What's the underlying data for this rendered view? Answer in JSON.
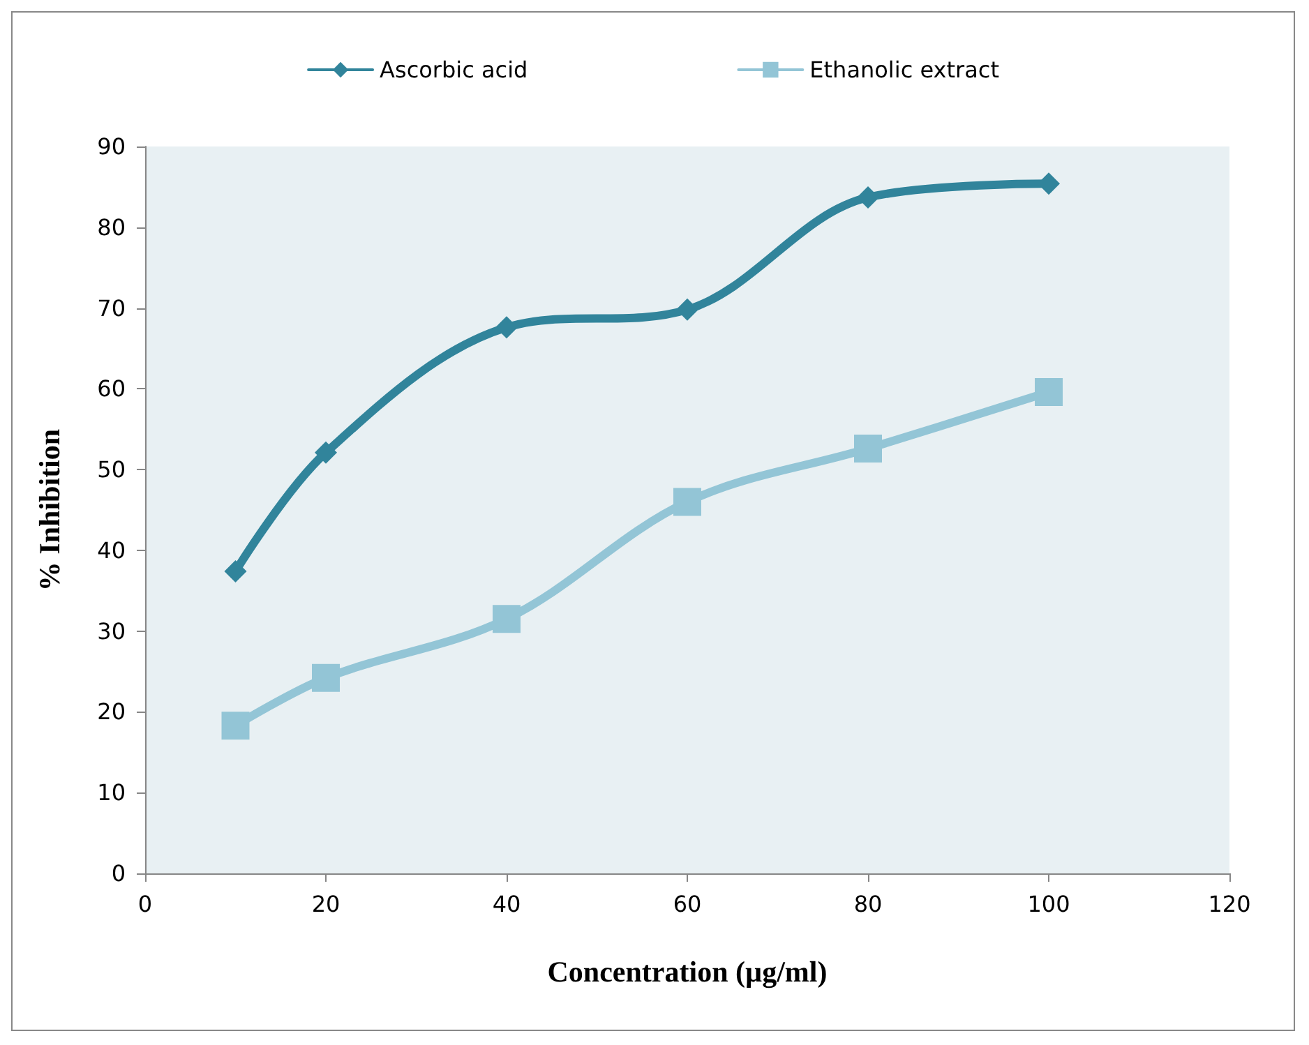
{
  "chart_data": {
    "type": "line",
    "xlabel": "Concentration (µg/ml)",
    "ylabel": "% Inhibition",
    "x": [
      10,
      20,
      40,
      60,
      80,
      100
    ],
    "series": [
      {
        "name": "Ascorbic acid",
        "color": "#31849b",
        "marker": "diamond",
        "values": [
          37.4,
          52.1,
          67.6,
          69.8,
          83.7,
          85.4
        ]
      },
      {
        "name": "Ethanolic extract",
        "color": "#93c5d6",
        "marker": "square",
        "values": [
          18.3,
          24.2,
          31.5,
          46,
          52.6,
          59.6
        ]
      }
    ],
    "xlim": [
      0,
      120
    ],
    "xticks": [
      0,
      20,
      40,
      60,
      80,
      100,
      120
    ],
    "ylim": [
      0,
      90
    ],
    "yticks": [
      0,
      10,
      20,
      30,
      40,
      50,
      60,
      70,
      80,
      90
    ],
    "grid": false,
    "legend": "top"
  }
}
